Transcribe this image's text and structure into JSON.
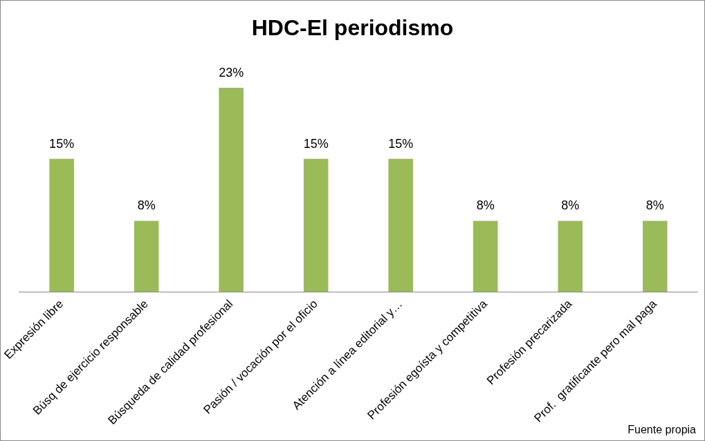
{
  "chart_data": {
    "type": "bar",
    "title": "HDC-El periodismo",
    "categories": [
      "Expresión libre",
      "Búsq de ejercicio responsable",
      "Búsqueda de calidad profesional",
      "Pasión / vocación por el oficio",
      "Atención a línea editorial y…",
      "Profesión egoísta y competitiva",
      "Profesión precarizada",
      "Prof.  gratificante pero mal paga"
    ],
    "values": [
      15,
      8,
      23,
      15,
      15,
      8,
      8,
      8
    ],
    "value_labels": [
      "15%",
      "8%",
      "23%",
      "15%",
      "15%",
      "8%",
      "8%",
      "8%"
    ],
    "color": "#9bbb59",
    "tick_labels": "x",
    "grid": false,
    "legend": false,
    "annotations": [
      "Fuente propia"
    ]
  }
}
